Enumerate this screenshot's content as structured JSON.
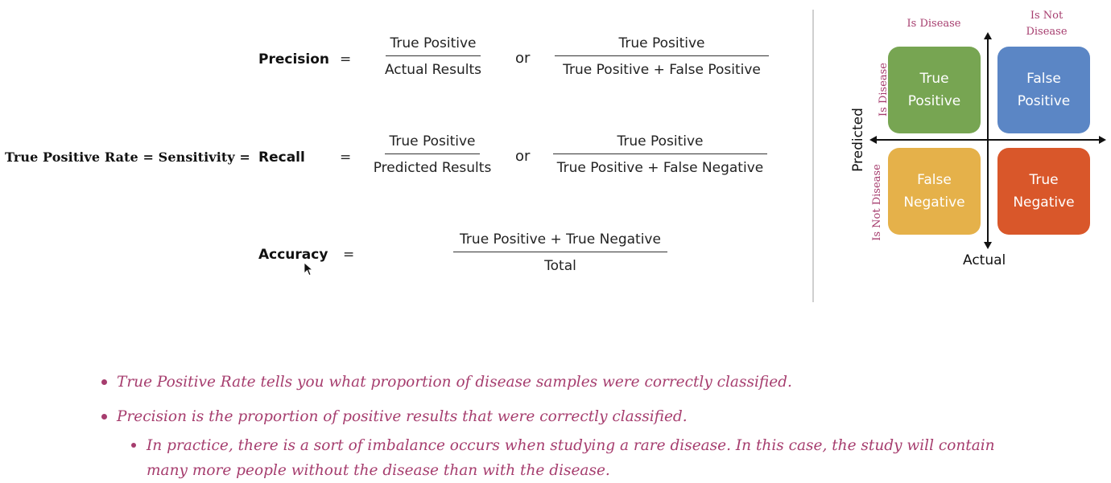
{
  "formulas": {
    "precision": {
      "label": "Precision",
      "eq": "=",
      "frac1": {
        "num": "True Positive",
        "den": "Actual Results"
      },
      "or": "or",
      "frac2": {
        "num": "True Positive",
        "den": "True Positive + False Positive"
      }
    },
    "recall": {
      "prefix": "True Positive Rate = Sensitivity =",
      "label": "Recall",
      "eq": "=",
      "frac1": {
        "num": "True Positive",
        "den": "Predicted Results"
      },
      "or": "or",
      "frac2": {
        "num": "True Positive",
        "den": "True Positive + False Negative"
      }
    },
    "accuracy": {
      "label": "Accuracy",
      "eq": "=",
      "frac": {
        "num": "True Positive + True Negative",
        "den": "Total"
      }
    }
  },
  "matrix": {
    "col_labels": [
      "Is Disease",
      "Is Not\nDisease"
    ],
    "row_labels": [
      "Is Disease",
      "Is Not Disease"
    ],
    "x_axis": "Actual",
    "y_axis": "Predicted",
    "cells": [
      {
        "text": "True\nPositive",
        "color": "#77a552"
      },
      {
        "text": "False\nPositive",
        "color": "#5b86c5"
      },
      {
        "text": "False\nNegative",
        "color": "#e5b14a"
      },
      {
        "text": "True\nNegative",
        "color": "#d9572a"
      }
    ]
  },
  "bullets": [
    "True Positive Rate tells you what proportion of  disease samples were correctly classified.",
    "Precision is the proportion of positive results that were correctly classified.",
    "In practice, there is a sort of imbalance occurs when studying a rare disease. In this case, the study will contain",
    "many more people without the disease than with the disease."
  ],
  "colors": {
    "accent": "#a63d6e"
  }
}
